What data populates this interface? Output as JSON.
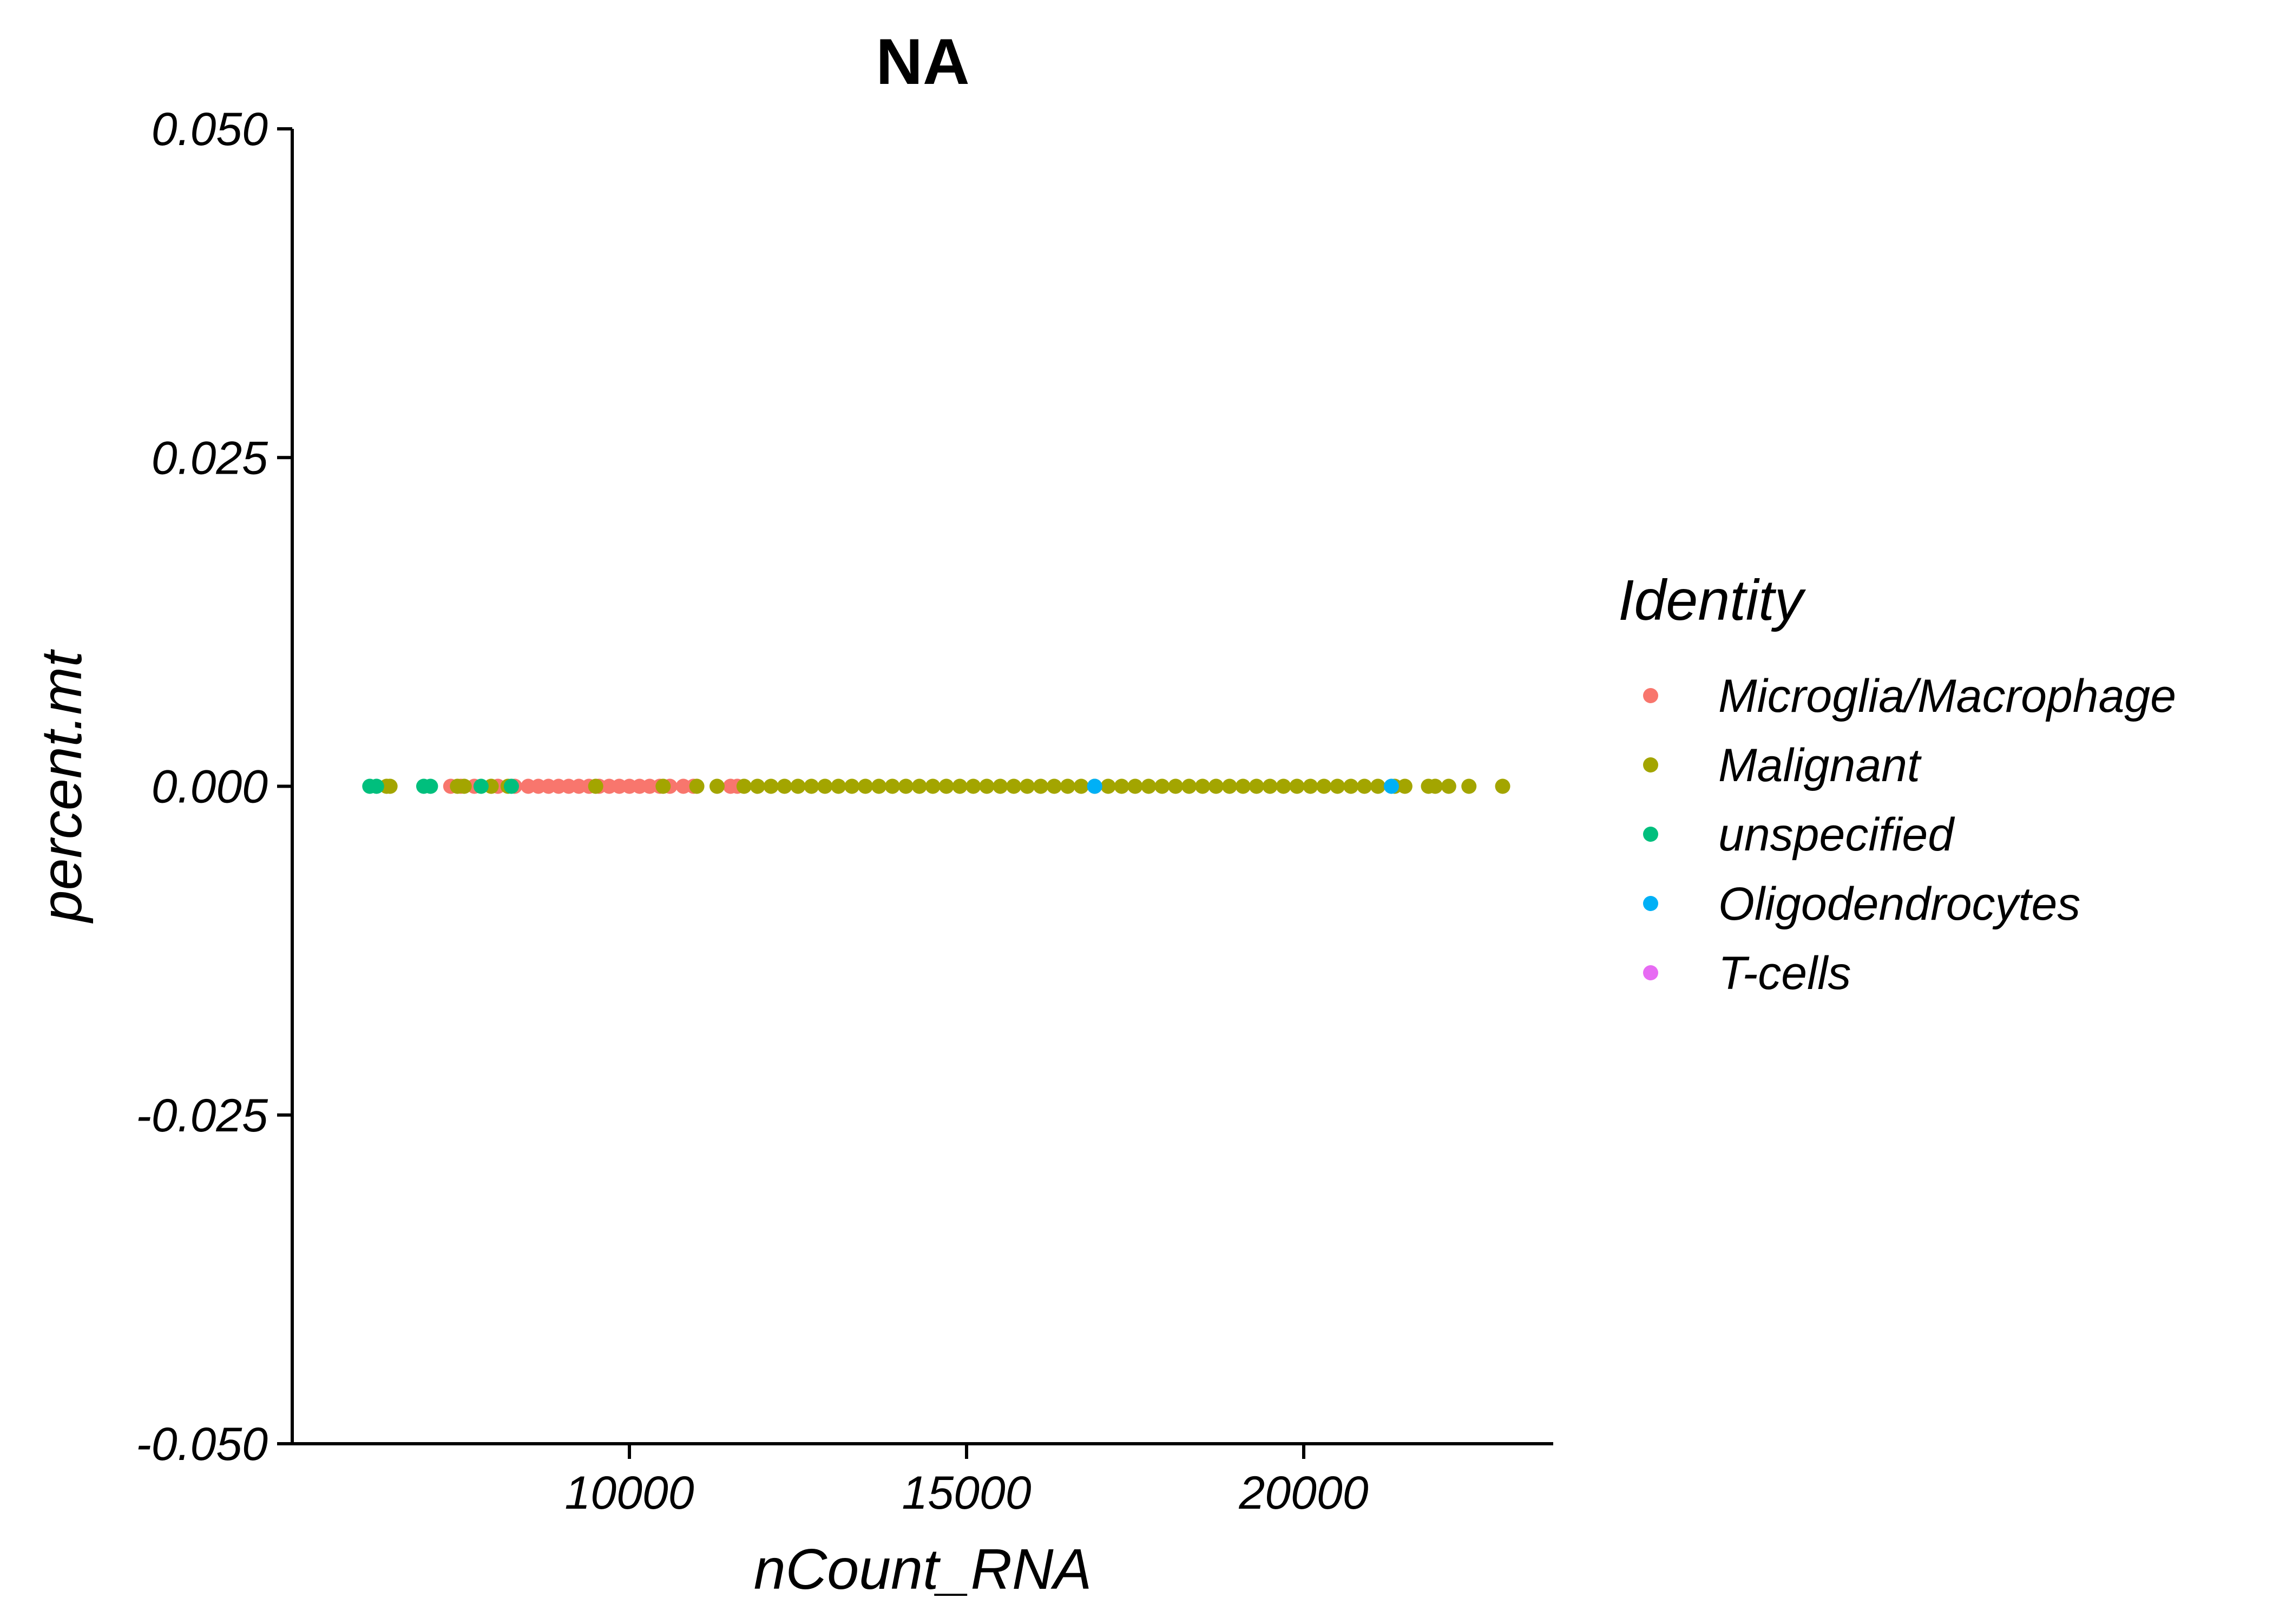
{
  "chart_data": {
    "type": "scatter",
    "title": "NA",
    "xlabel": "nCount_RNA",
    "ylabel": "percent.mt",
    "xlim": [
      5000,
      23700
    ],
    "ylim": [
      -0.05,
      0.05
    ],
    "x_ticks": [
      10000,
      15000,
      20000
    ],
    "x_tick_labels": [
      "10000",
      "15000",
      "20000"
    ],
    "y_ticks": [
      0.05,
      0.025,
      0,
      -0.025,
      -0.05
    ],
    "y_tick_labels": [
      "0.050",
      "0.025",
      "0.000",
      "-0.025",
      "-0.050"
    ],
    "grid": false,
    "legend": {
      "title": "Identity",
      "position": "right"
    },
    "series": [
      {
        "name": "Microglia/Macrophage",
        "color": "#F8766D",
        "points": [
          [
            7350,
            0
          ],
          [
            7500,
            0
          ],
          [
            7700,
            0
          ],
          [
            8050,
            0
          ],
          [
            8300,
            0
          ],
          [
            8500,
            0
          ],
          [
            8650,
            0
          ],
          [
            8800,
            0
          ],
          [
            8950,
            0
          ],
          [
            9100,
            0
          ],
          [
            9250,
            0
          ],
          [
            9400,
            0
          ],
          [
            9550,
            0
          ],
          [
            9700,
            0
          ],
          [
            9850,
            0
          ],
          [
            10000,
            0
          ],
          [
            10150,
            0
          ],
          [
            10300,
            0
          ],
          [
            10450,
            0
          ],
          [
            10600,
            0
          ],
          [
            10800,
            0
          ],
          [
            10950,
            0
          ],
          [
            11500,
            0
          ],
          [
            11600,
            0
          ]
        ]
      },
      {
        "name": "Malignant",
        "color": "#A3A500",
        "points": [
          [
            6400,
            0
          ],
          [
            6450,
            0
          ],
          [
            7450,
            0
          ],
          [
            7550,
            0
          ],
          [
            7950,
            0
          ],
          [
            8200,
            0
          ],
          [
            9500,
            0
          ],
          [
            10500,
            0
          ],
          [
            11000,
            0
          ],
          [
            11300,
            0
          ],
          [
            11700,
            0
          ],
          [
            11900,
            0
          ],
          [
            12100,
            0
          ],
          [
            12300,
            0
          ],
          [
            12500,
            0
          ],
          [
            12700,
            0
          ],
          [
            12900,
            0
          ],
          [
            13100,
            0
          ],
          [
            13300,
            0
          ],
          [
            13500,
            0
          ],
          [
            13700,
            0
          ],
          [
            13900,
            0
          ],
          [
            14100,
            0
          ],
          [
            14300,
            0
          ],
          [
            14500,
            0
          ],
          [
            14700,
            0
          ],
          [
            14900,
            0
          ],
          [
            15100,
            0
          ],
          [
            15300,
            0
          ],
          [
            15500,
            0
          ],
          [
            15700,
            0
          ],
          [
            15900,
            0
          ],
          [
            16100,
            0
          ],
          [
            16300,
            0
          ],
          [
            16500,
            0
          ],
          [
            16700,
            0
          ],
          [
            16900,
            0
          ],
          [
            17100,
            0
          ],
          [
            17300,
            0
          ],
          [
            17500,
            0
          ],
          [
            17700,
            0
          ],
          [
            17900,
            0
          ],
          [
            18100,
            0
          ],
          [
            18300,
            0
          ],
          [
            18500,
            0
          ],
          [
            18700,
            0
          ],
          [
            18900,
            0
          ],
          [
            19100,
            0
          ],
          [
            19300,
            0
          ],
          [
            19500,
            0
          ],
          [
            19700,
            0
          ],
          [
            19900,
            0
          ],
          [
            20100,
            0
          ],
          [
            20300,
            0
          ],
          [
            20500,
            0
          ],
          [
            20700,
            0
          ],
          [
            20900,
            0
          ],
          [
            21100,
            0
          ],
          [
            21350,
            0
          ],
          [
            21500,
            0
          ],
          [
            21850,
            0
          ],
          [
            21950,
            0
          ],
          [
            22150,
            0
          ],
          [
            22450,
            0
          ],
          [
            22950,
            0
          ]
        ]
      },
      {
        "name": "unspecified",
        "color": "#00BF7D",
        "points": [
          [
            6150,
            0
          ],
          [
            6250,
            0
          ],
          [
            6950,
            0
          ],
          [
            7050,
            0
          ],
          [
            7800,
            0
          ],
          [
            8250,
            0
          ]
        ]
      },
      {
        "name": "Oligodendrocytes",
        "color": "#00B0F6",
        "points": [
          [
            16900,
            0
          ],
          [
            21300,
            0
          ]
        ]
      },
      {
        "name": "T-cells",
        "color": "#E76BF3",
        "points": []
      }
    ]
  }
}
